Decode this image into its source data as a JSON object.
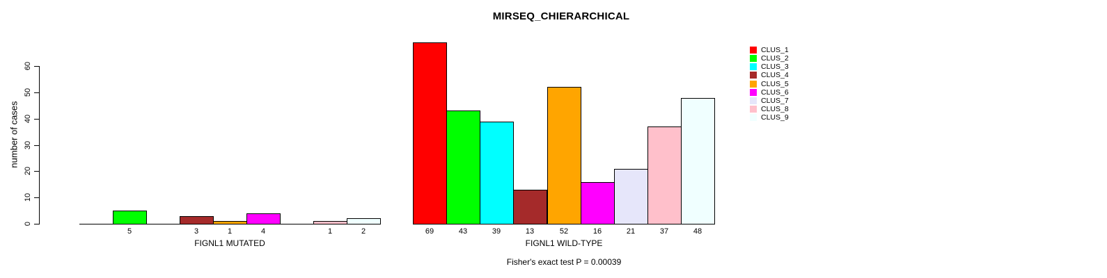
{
  "chart_data": {
    "type": "bar",
    "title": "MIRSEQ_CHIERARCHICAL",
    "ylabel": "number of cases",
    "annotation": "Fisher's exact test P = 0.00039",
    "yticks": [
      0,
      10,
      20,
      30,
      40,
      50,
      60
    ],
    "ylim": [
      0,
      69
    ],
    "grid": false,
    "legend_position": "right",
    "legend": [
      {
        "label": "CLUS_1",
        "color": "#FF0000"
      },
      {
        "label": "CLUS_2",
        "color": "#00FF00"
      },
      {
        "label": "CLUS_3",
        "color": "#00FFFF"
      },
      {
        "label": "CLUS_4",
        "color": "#A52A2A"
      },
      {
        "label": "CLUS_5",
        "color": "#FFA500"
      },
      {
        "label": "CLUS_6",
        "color": "#FF00FF"
      },
      {
        "label": "CLUS_7",
        "color": "#E6E6FA"
      },
      {
        "label": "CLUS_8",
        "color": "#FFC0CB"
      },
      {
        "label": "CLUS_9",
        "color": "#F0FFFF"
      }
    ],
    "groups": [
      {
        "label": "FIGNL1 MUTATED",
        "values": [
          0,
          5,
          0,
          3,
          1,
          4,
          0,
          1,
          2
        ]
      },
      {
        "label": "FIGNL1 WILD-TYPE",
        "values": [
          69,
          43,
          39,
          13,
          52,
          16,
          21,
          37,
          48
        ]
      }
    ],
    "note": "zero-value bars are not drawn and not labeled"
  }
}
